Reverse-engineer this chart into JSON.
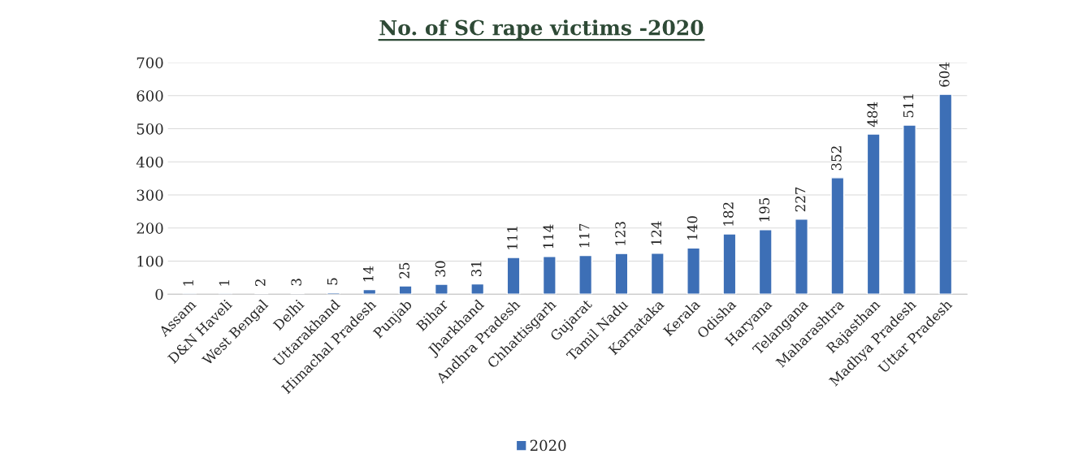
{
  "chart_data": {
    "type": "bar",
    "title": "No. of SC rape victims -2020",
    "categories": [
      "Assam",
      "D&N Haveli",
      "West Bengal",
      "Delhi",
      "Uttarakhand",
      "Himachal Pradesh",
      "Punjab",
      "Bihar",
      "Jharkhand",
      "Andhra Pradesh",
      "Chhattisgarh",
      "Gujarat",
      "Tamil Nadu",
      "Karnataka",
      "Kerala",
      "Odisha",
      "Haryana",
      "Telangana",
      "Maharashtra",
      "Rajasthan",
      "Madhya Pradesh",
      "Uttar Pradesh"
    ],
    "series": [
      {
        "name": "2020",
        "color": "#3d6fb6",
        "values": [
          1,
          1,
          2,
          3,
          5,
          14,
          25,
          30,
          31,
          111,
          114,
          117,
          123,
          124,
          140,
          182,
          195,
          227,
          352,
          484,
          511,
          604
        ]
      }
    ],
    "ylim": [
      0,
      700
    ],
    "yticks": [
      0,
      100,
      200,
      300,
      400,
      500,
      600,
      700
    ],
    "grid": "y",
    "legend": "bottom",
    "data_labels": true
  }
}
